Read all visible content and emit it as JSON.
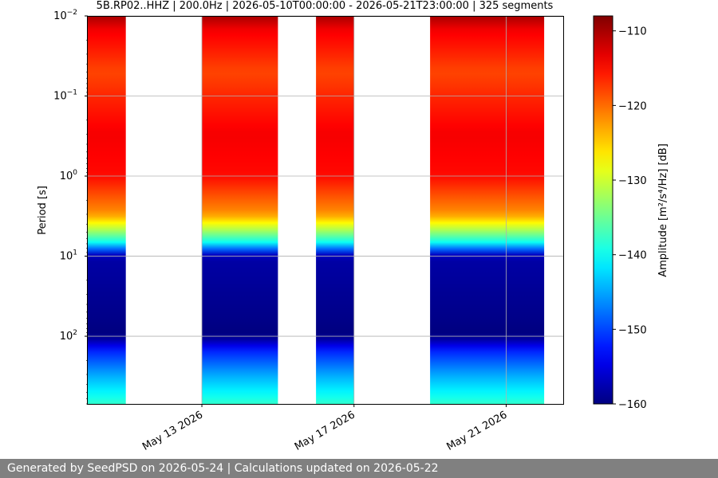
{
  "chart_data": {
    "type": "heatmap",
    "title": "5B.RP02..HHZ | 200.0Hz | 2026-05-10T00:00:00 - 2026-05-21T23:00:00 | 325 segments",
    "xlabel": "",
    "ylabel": "Period [s]",
    "y_scale": "log",
    "y_inverted": true,
    "ylim": [
      0.01,
      700
    ],
    "xlim": [
      "2026-05-10T00:00:00",
      "2026-05-22T12:00:00"
    ],
    "x_ticks": [
      {
        "date": "2026-05-13",
        "label": "May 13 2026"
      },
      {
        "date": "2026-05-17",
        "label": "May 17 2026"
      },
      {
        "date": "2026-05-21",
        "label": "May 21 2026"
      }
    ],
    "y_ticks": [
      {
        "value": 0.01,
        "base": "10",
        "exp": "−2"
      },
      {
        "value": 0.1,
        "base": "10",
        "exp": "−1"
      },
      {
        "value": 1,
        "base": "10",
        "exp": "0"
      },
      {
        "value": 10,
        "base": "10",
        "exp": "1"
      },
      {
        "value": 100,
        "base": "10",
        "exp": "2"
      }
    ],
    "grid": true,
    "colormap": "jet",
    "colorbar": {
      "label": "Amplitude [m²/s⁴/Hz] [dB]",
      "range": [
        -160,
        -108
      ],
      "ticks": [
        -110,
        -120,
        -130,
        -140,
        -150,
        -160
      ],
      "tick_labels": [
        "−110",
        "−120",
        "−130",
        "−140",
        "−150",
        "−160"
      ]
    },
    "data_segments": [
      {
        "start": "2026-05-10T00:00:00",
        "end": "2026-05-11T00:00:00"
      },
      {
        "start": "2026-05-13T00:00:00",
        "end": "2026-05-15T00:00:00"
      },
      {
        "start": "2026-05-16T00:00:00",
        "end": "2026-05-17T00:00:00"
      },
      {
        "start": "2026-05-19T00:00:00",
        "end": "2026-05-22T00:00:00"
      }
    ],
    "amplitude_profile": [
      {
        "period": 0.01,
        "db": -110
      },
      {
        "period": 0.015,
        "db": -114
      },
      {
        "period": 0.05,
        "db": -118
      },
      {
        "period": 0.3,
        "db": -114
      },
      {
        "period": 1.0,
        "db": -115
      },
      {
        "period": 3.0,
        "db": -122
      },
      {
        "period": 5.0,
        "db": -133
      },
      {
        "period": 7.0,
        "db": -141
      },
      {
        "period": 10.0,
        "db": -158
      },
      {
        "period": 100.0,
        "db": -160
      },
      {
        "period": 150.0,
        "db": -152
      },
      {
        "period": 300.0,
        "db": -145
      },
      {
        "period": 700.0,
        "db": -138
      }
    ]
  },
  "footer": {
    "text": "Generated by SeedPSD on 2026-05-24 | Calculations updated on 2026-05-22"
  }
}
